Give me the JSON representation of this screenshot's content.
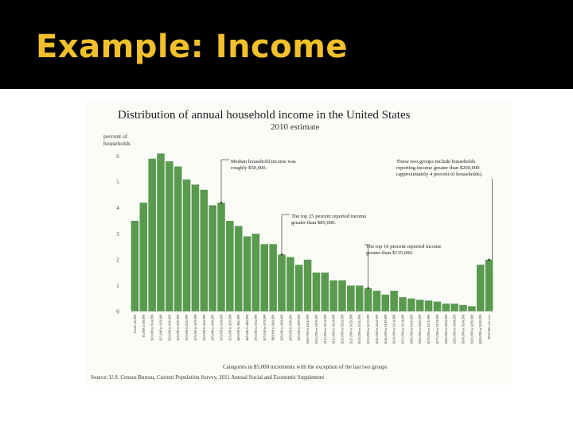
{
  "slide": {
    "title": "Example: Income",
    "title_color": "#f2c02a",
    "background": "#000000"
  },
  "chart_data": {
    "type": "bar",
    "title": "Distribution of annual household income in the United States",
    "subtitle": "2010 estimate",
    "ylabel": "percent of households",
    "xlabel": "Categories in $5,000 increments with the exception of the last two groups",
    "source": "Source: U.S. Census Bureau, Current Population Survey, 2011 Annual Social and Economic Supplement",
    "ylim": [
      0,
      6.2
    ],
    "yticks": [
      "0",
      "1",
      "2",
      "3",
      "4",
      "5",
      "6"
    ],
    "bar_color": "#5a9a4f",
    "categories": [
      "Under $5,000",
      "$5,000 to $9,999",
      "$10,000 to $14,999",
      "$15,000 to $19,999",
      "$20,000 to $24,999",
      "$25,000 to $29,999",
      "$30,000 to $34,999",
      "$35,000 to $39,999",
      "$40,000 to $44,999",
      "$45,000 to $49,999",
      "$50,000 to $54,999",
      "$55,000 to $59,999",
      "$60,000 to $64,999",
      "$65,000 to $69,999",
      "$70,000 to $74,999",
      "$75,000 to $79,999",
      "$80,000 to $84,999",
      "$85,000 to $89,999",
      "$90,000 to $94,999",
      "$95,000 to $99,999",
      "$100,000 to $104,999",
      "$105,000 to $109,999",
      "$110,000 to $114,999",
      "$115,000 to $119,999",
      "$120,000 to $124,999",
      "$125,000 to $129,999",
      "$130,000 to $134,999",
      "$135,000 to $139,999",
      "$140,000 to $144,999",
      "$145,000 to $149,999",
      "$150,000 to $154,999",
      "$155,000 to $159,999",
      "$160,000 to $164,999",
      "$165,000 to $169,999",
      "$170,000 to $174,999",
      "$175,000 to $179,999",
      "$180,000 to $184,999",
      "$185,000 to $189,999",
      "$190,000 to $194,999",
      "$195,000 to $199,999",
      "$200,000 to $249,999",
      "$250,000 and over"
    ],
    "values": [
      3.5,
      4.2,
      5.9,
      6.1,
      5.8,
      5.6,
      5.1,
      4.9,
      4.7,
      4.1,
      4.2,
      3.5,
      3.3,
      2.9,
      3.0,
      2.6,
      2.6,
      2.2,
      2.1,
      1.8,
      2.0,
      1.5,
      1.5,
      1.2,
      1.2,
      1.0,
      1.0,
      0.9,
      0.8,
      0.65,
      0.8,
      0.55,
      0.5,
      0.45,
      0.42,
      0.38,
      0.3,
      0.3,
      0.25,
      0.2,
      1.8,
      2.0
    ],
    "annotations": [
      {
        "id": "median",
        "lines": [
          "Median household income was",
          "roughly $50,000."
        ],
        "category_index": 10
      },
      {
        "id": "top25",
        "lines": [
          "The top 25 percent reported income",
          "greater than $85,000."
        ],
        "category_index": 17
      },
      {
        "id": "top10",
        "lines": [
          "The top 10 percent reported income",
          "greater than $135,000."
        ],
        "category_index": 27
      },
      {
        "id": "top-groups",
        "lines": [
          "These two groups include households",
          "reporting income greater than $200,000",
          "(approximately 4 percent of households)."
        ],
        "category_index": 40
      }
    ]
  }
}
